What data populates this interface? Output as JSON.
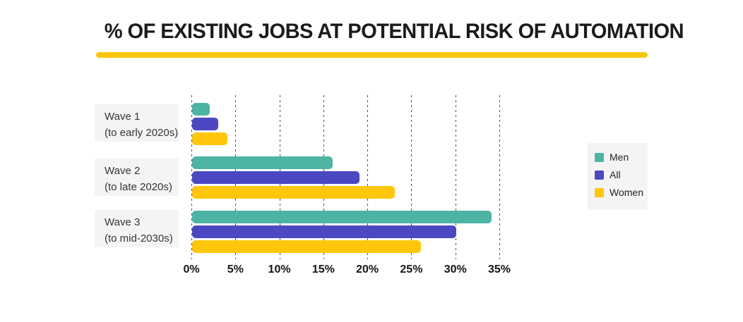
{
  "title": "% OF EXISTING JOBS AT POTENTIAL RISK OF AUTOMATION",
  "colors": {
    "title_underline": "#F9C60F",
    "men": "#4DB4A3",
    "all": "#4B48C2",
    "women": "#FFC60B",
    "label_box_bg": "#F4F4F4",
    "legend_box_bg": "#F4F4F4",
    "gridline": "#4D4D4D",
    "background": "#FFFFFF"
  },
  "chart_data": {
    "type": "bar",
    "orientation": "horizontal",
    "title": "% OF EXISTING JOBS AT POTENTIAL RISK OF AUTOMATION",
    "categories": [
      {
        "label": "Wave 1",
        "sublabel": "(to early 2020s)"
      },
      {
        "label": "Wave 2",
        "sublabel": "(to late 2020s)"
      },
      {
        "label": "Wave 3",
        "sublabel": "(to mid-2030s)"
      }
    ],
    "series": [
      {
        "name": "Men",
        "color": "#4DB4A3",
        "values": [
          2,
          16,
          34
        ]
      },
      {
        "name": "All",
        "color": "#4B48C2",
        "values": [
          3,
          19,
          30
        ]
      },
      {
        "name": "Women",
        "color": "#FFC60B",
        "values": [
          4,
          23,
          26
        ]
      }
    ],
    "x_tick_labels": [
      "0%",
      "5%",
      "10%",
      "15%",
      "20%",
      "25%",
      "30%",
      "35%"
    ],
    "x_tick_values": [
      0,
      5,
      10,
      15,
      20,
      25,
      30,
      35
    ],
    "xlabel": "",
    "ylabel": "",
    "xlim": [
      0,
      35
    ],
    "grid": "vertical-dashed",
    "legend_position": "right",
    "legend_entries": [
      "Men",
      "All",
      "Women"
    ]
  }
}
